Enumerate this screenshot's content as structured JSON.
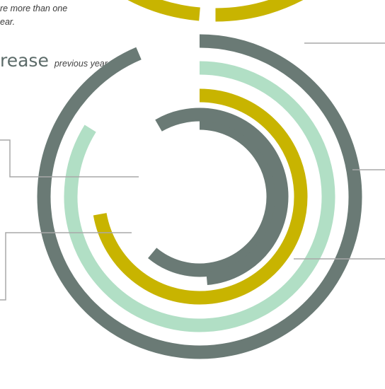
{
  "header": {
    "note_lines": [
      "re more than one",
      "ear."
    ],
    "headline_main": "rease",
    "headline_suffix": "previous year"
  },
  "chart_data": {
    "type": "radial-bar",
    "title": "",
    "start_angle_deg": 0,
    "direction": "clockwise",
    "rings": [
      {
        "value_deg": 220,
        "color": "#6a7a75"
      },
      {
        "value_deg": 260,
        "color": "#c8b400"
      },
      {
        "value_deg": 302,
        "color": "#b1dfc5"
      },
      {
        "value_deg": 337,
        "color": "#6a7a75"
      },
      {
        "value_deg": 365,
        "color": "#c8b400"
      },
      {
        "value_deg": 205,
        "color": "#6a7a75"
      }
    ]
  }
}
